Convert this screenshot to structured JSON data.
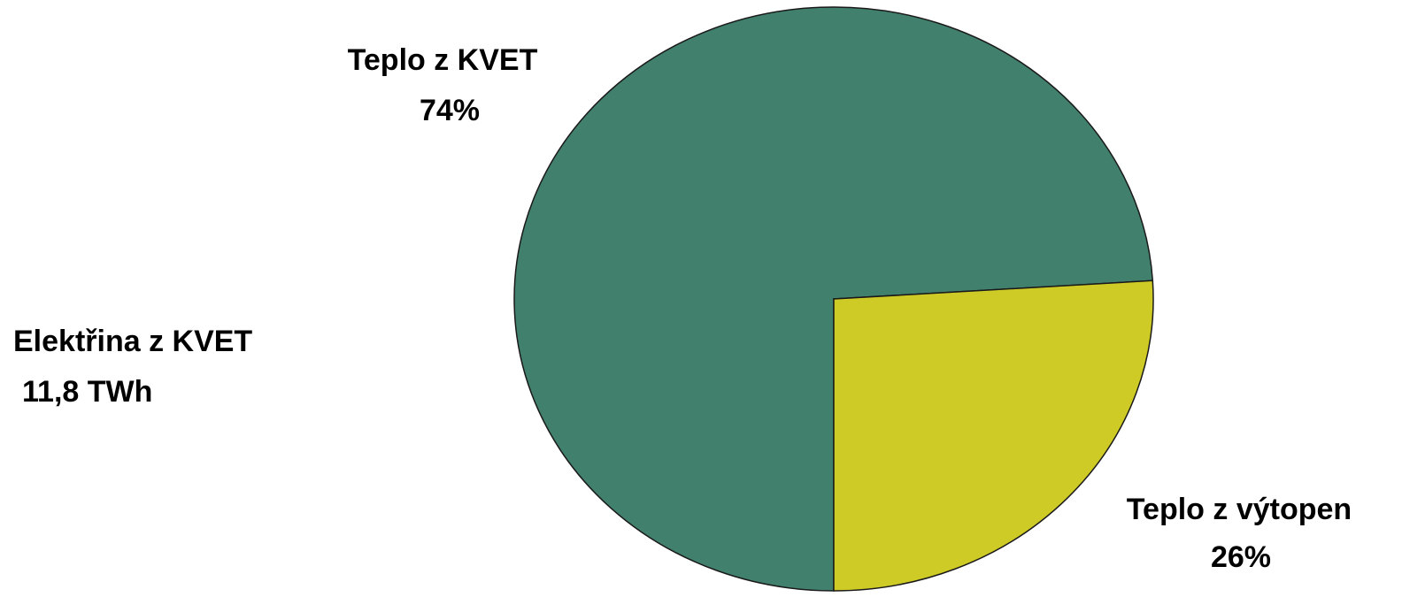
{
  "chart_data": {
    "type": "pie",
    "categories": [
      "Teplo z KVET",
      "Teplo z výtopen"
    ],
    "values": [
      74,
      26
    ],
    "value_labels": [
      "74%",
      "26%"
    ],
    "colors": [
      "#41806d",
      "#cfcb26"
    ],
    "annotations": [
      "Elektřina z KVET",
      "11,8 TWh"
    ]
  }
}
